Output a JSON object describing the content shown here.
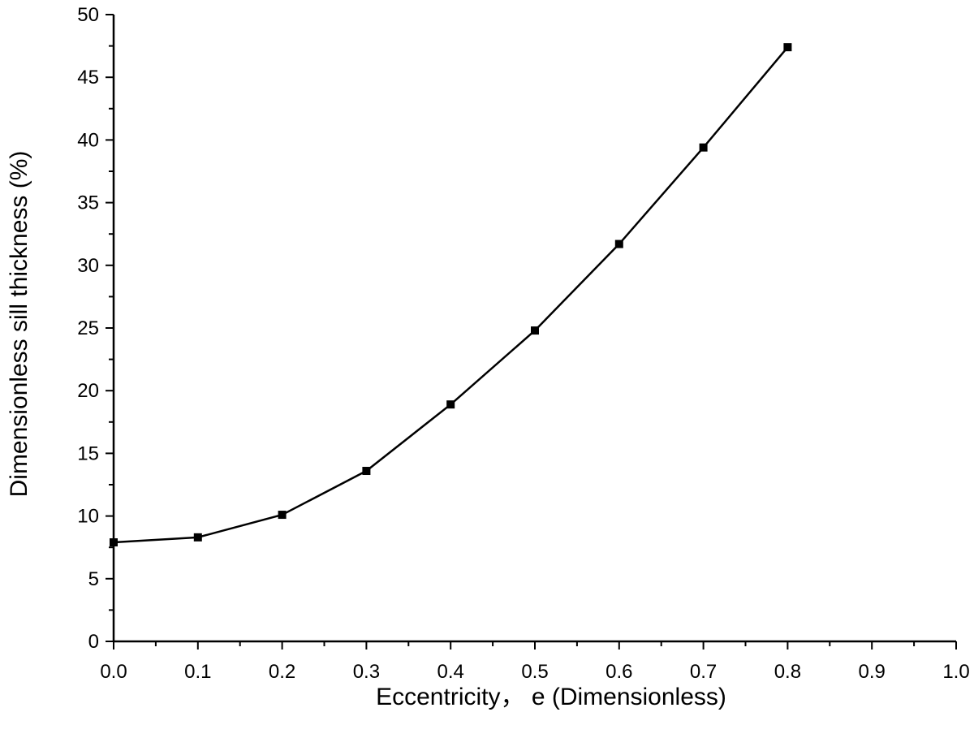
{
  "chart_data": {
    "type": "line",
    "xlabel": "Eccentricity，  e (Dimensionless)",
    "ylabel": "Dimensionless sill thickness (%)",
    "xlim": [
      0.0,
      1.0
    ],
    "ylim": [
      0,
      50
    ],
    "x_ticks": [
      "0.0",
      "0.1",
      "0.2",
      "0.3",
      "0.4",
      "0.5",
      "0.6",
      "0.7",
      "0.8",
      "0.9",
      "1.0"
    ],
    "y_ticks": [
      "0",
      "5",
      "10",
      "15",
      "20",
      "25",
      "30",
      "35",
      "40",
      "45",
      "50"
    ],
    "grid": false,
    "series": [
      {
        "marker": "square",
        "color": "#000000",
        "x": [
          0.0,
          0.1,
          0.2,
          0.3,
          0.4,
          0.5,
          0.6,
          0.7,
          0.8
        ],
        "y": [
          7.9,
          8.3,
          10.1,
          13.6,
          18.9,
          24.8,
          31.7,
          39.4,
          47.4
        ]
      }
    ]
  }
}
